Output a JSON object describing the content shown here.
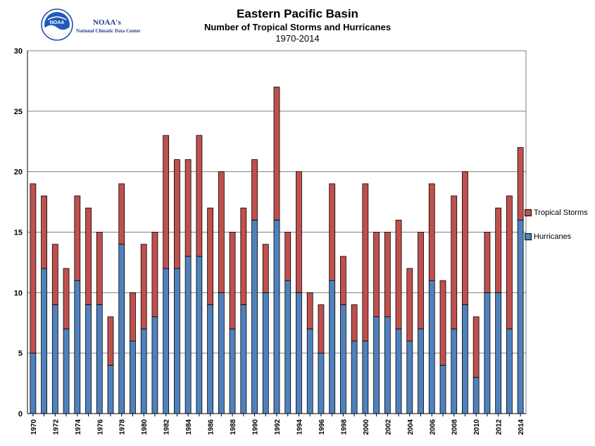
{
  "logo": {
    "name": "NOAA's",
    "subtitle": "National Climatic Data Center",
    "emblem": "NOAA"
  },
  "header": {
    "title": "Eastern Pacific Basin",
    "subtitle": "Number of Tropical Storms and Hurricanes",
    "years": "1970-2014"
  },
  "colors": {
    "hurricanes": "#4f81bd",
    "tropical_storms": "#c0504d",
    "grid": "#808080"
  },
  "legend": {
    "tropical_storms": "Tropical Storms",
    "hurricanes": "Hurricanes"
  },
  "chart_data": {
    "type": "bar",
    "stacked": true,
    "title": "Eastern Pacific Basin",
    "subtitle": "Number of Tropical Storms and Hurricanes",
    "xlabel": "",
    "ylabel": "",
    "ylim": [
      0,
      30
    ],
    "yticks": [
      0,
      5,
      10,
      15,
      20,
      25,
      30
    ],
    "grid": true,
    "legend_position": "right",
    "categories": [
      1970,
      1971,
      1972,
      1973,
      1974,
      1975,
      1976,
      1977,
      1978,
      1979,
      1980,
      1981,
      1982,
      1983,
      1984,
      1985,
      1986,
      1987,
      1988,
      1989,
      1990,
      1991,
      1992,
      1993,
      1994,
      1995,
      1996,
      1997,
      1998,
      1999,
      2000,
      2001,
      2002,
      2003,
      2004,
      2005,
      2006,
      2007,
      2008,
      2009,
      2010,
      2011,
      2012,
      2013,
      2014
    ],
    "series": [
      {
        "name": "Hurricanes",
        "values": [
          5,
          12,
          9,
          7,
          11,
          9,
          9,
          4,
          14,
          6,
          7,
          8,
          12,
          12,
          13,
          13,
          9,
          10,
          7,
          9,
          16,
          10,
          16,
          11,
          10,
          7,
          5,
          11,
          9,
          6,
          6,
          8,
          8,
          7,
          6,
          7,
          11,
          4,
          7,
          9,
          3,
          10,
          10,
          7,
          16
        ]
      },
      {
        "name": "Tropical Storms",
        "values": [
          14,
          6,
          5,
          5,
          7,
          8,
          6,
          4,
          5,
          4,
          7,
          7,
          11,
          9,
          8,
          10,
          8,
          10,
          8,
          8,
          5,
          4,
          11,
          4,
          10,
          3,
          4,
          8,
          4,
          3,
          13,
          7,
          7,
          9,
          6,
          8,
          8,
          7,
          11,
          11,
          5,
          5,
          7,
          11,
          6
        ]
      }
    ]
  }
}
